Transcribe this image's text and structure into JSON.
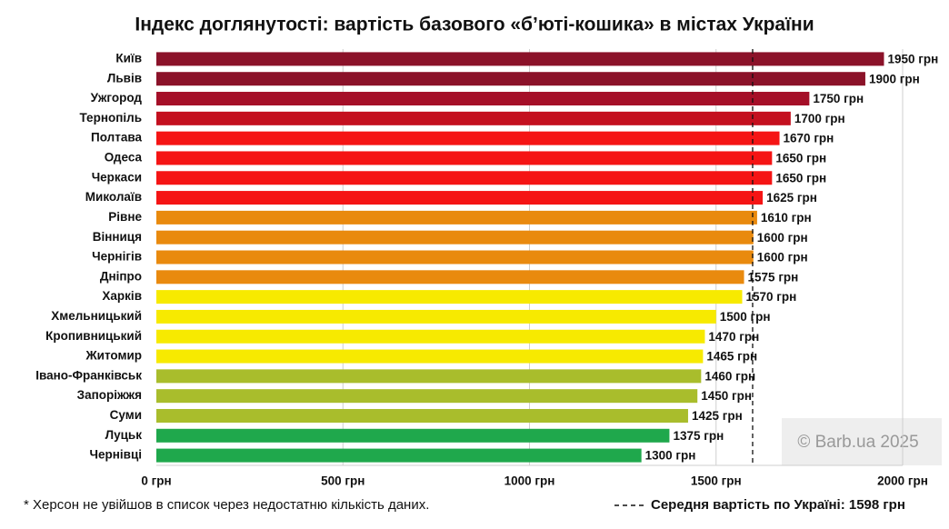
{
  "chart_data": {
    "type": "bar",
    "orientation": "horizontal",
    "title": "Індекс доглянутості: вартість базового «б’юті-кошика» в містах України",
    "categories": [
      "Київ",
      "Львів",
      "Ужгород",
      "Тернопіль",
      "Полтава",
      "Одеса",
      "Черкаси",
      "Миколаїв",
      "Рівне",
      "Вінниця",
      "Чернігів",
      "Дніпро",
      "Харків",
      "Хмельницький",
      "Кропивницький",
      "Житомир",
      "Івано-Франківськ",
      "Запоріжжя",
      "Суми",
      "Луцьк",
      "Чернівці"
    ],
    "values": [
      1950,
      1900,
      1750,
      1700,
      1670,
      1650,
      1650,
      1625,
      1610,
      1600,
      1600,
      1575,
      1570,
      1500,
      1470,
      1465,
      1460,
      1450,
      1425,
      1375,
      1300
    ],
    "value_labels": [
      "1950 грн",
      "1900 грн",
      "1750 грн",
      "1700 грн",
      "1670 грн",
      "1650 грн",
      "1650 грн",
      "1625 грн",
      "1610 грн",
      "1600 грн",
      "1600 грн",
      "1575 грн",
      "1570 грн",
      "1500 грн",
      "1470 грн",
      "1465 грн",
      "1460 грн",
      "1450 грн",
      "1425 грн",
      "1375 грн",
      "1300 грн"
    ],
    "colors": [
      "#8b1229",
      "#8b1229",
      "#a50f28",
      "#c4101f",
      "#f51414",
      "#f51414",
      "#f51414",
      "#f51414",
      "#e98a0e",
      "#e98a0e",
      "#e98a0e",
      "#e98a0e",
      "#f7ea00",
      "#f7ea00",
      "#f7ea00",
      "#f7ea00",
      "#a9bd2c",
      "#a9bd2c",
      "#a9bd2c",
      "#1fa84c",
      "#1fa84c"
    ],
    "xlim": [
      0,
      2000
    ],
    "xticks": [
      {
        "value": 0,
        "label": "0 грн"
      },
      {
        "value": 500,
        "label": "500 грн"
      },
      {
        "value": 1000,
        "label": "1000 грн"
      },
      {
        "value": 1500,
        "label": "1500 грн"
      },
      {
        "value": 2000,
        "label": "2000 грн"
      }
    ],
    "grid": true,
    "average_line": {
      "value": 1598,
      "label": "Середня вартість по Україні: 1598 грн"
    },
    "footnote": "* Херсон не увійшов в список через недостатню кількість даних.",
    "watermark": "© Barb.ua 2025"
  }
}
